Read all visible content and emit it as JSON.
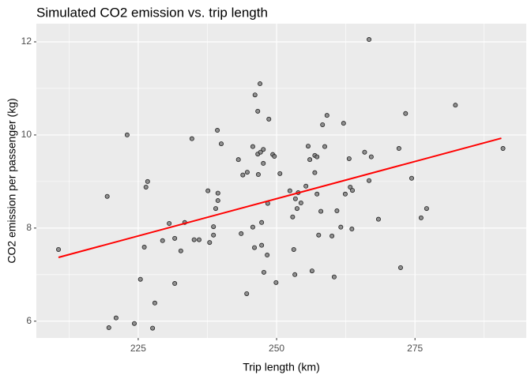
{
  "chart_data": {
    "type": "scatter",
    "title": "Simulated CO2 emission vs. trip length",
    "x_label": "Trip length (km)",
    "y_label": "CO2 emission per passenger (kg)",
    "x": [
      210.6,
      219.4,
      219.7,
      221.0,
      223.0,
      224.3,
      225.4,
      226.1,
      226.4,
      226.7,
      227.6,
      228.0,
      229.4,
      230.6,
      231.6,
      231.6,
      232.7,
      233.4,
      234.7,
      235.1,
      236.0,
      237.6,
      237.9,
      238.6,
      238.6,
      239.0,
      239.4,
      239.4,
      239.3,
      240.0,
      243.1,
      243.6,
      243.9,
      244.6,
      244.7,
      245.7,
      245.7,
      246.0,
      246.1,
      246.6,
      246.6,
      246.7,
      247.0,
      247.1,
      247.3,
      247.3,
      247.6,
      247.6,
      247.7,
      248.3,
      248.4,
      248.6,
      249.3,
      249.6,
      249.9,
      250.6,
      252.4,
      252.9,
      253.1,
      253.3,
      253.4,
      253.7,
      253.9,
      254.4,
      255.3,
      255.7,
      256.0,
      256.4,
      256.9,
      256.9,
      257.3,
      257.3,
      257.6,
      258.0,
      258.3,
      258.7,
      259.1,
      260.0,
      260.4,
      260.9,
      261.6,
      262.1,
      262.4,
      263.1,
      263.3,
      263.6,
      263.7,
      265.9,
      266.7,
      267.1,
      268.4,
      272.1,
      272.4,
      273.3,
      274.4,
      276.1,
      277.1,
      282.3,
      290.9,
      266.7
    ],
    "values": [
      7.54,
      8.68,
      5.86,
      6.07,
      10.0,
      5.95,
      6.9,
      7.59,
      8.88,
      9.0,
      5.85,
      6.39,
      7.73,
      8.1,
      7.78,
      6.81,
      7.51,
      8.12,
      9.92,
      7.75,
      7.75,
      8.8,
      7.69,
      7.85,
      8.03,
      8.42,
      8.59,
      8.75,
      10.1,
      9.81,
      9.47,
      7.88,
      9.14,
      6.59,
      9.2,
      9.75,
      8.02,
      7.58,
      10.86,
      9.59,
      10.51,
      9.15,
      11.1,
      9.63,
      7.63,
      8.12,
      9.69,
      9.39,
      7.05,
      7.42,
      8.53,
      10.34,
      9.58,
      9.54,
      6.83,
      9.17,
      8.8,
      8.24,
      7.54,
      7.0,
      8.63,
      8.42,
      8.76,
      8.54,
      8.9,
      9.76,
      9.47,
      7.08,
      9.19,
      9.56,
      9.53,
      8.73,
      7.85,
      8.36,
      10.22,
      9.75,
      10.42,
      7.83,
      6.95,
      8.37,
      8.02,
      10.25,
      8.73,
      9.49,
      8.88,
      7.98,
      8.81,
      9.63,
      9.02,
      9.53,
      8.19,
      9.71,
      7.15,
      10.46,
      9.07,
      8.22,
      8.42,
      10.64,
      9.71,
      12.05
    ],
    "color": "#7f7f7f",
    "line": {
      "x": [
        210.6,
        290.6
      ],
      "values": [
        7.37,
        9.93
      ],
      "color": "#ff0000"
    },
    "xlim": [
      206.6,
      295.1
    ],
    "ylim": [
      5.64,
      12.39
    ],
    "xticks": [
      225,
      250,
      275
    ],
    "yticks": [
      6,
      8,
      10,
      12
    ],
    "grid": true
  }
}
